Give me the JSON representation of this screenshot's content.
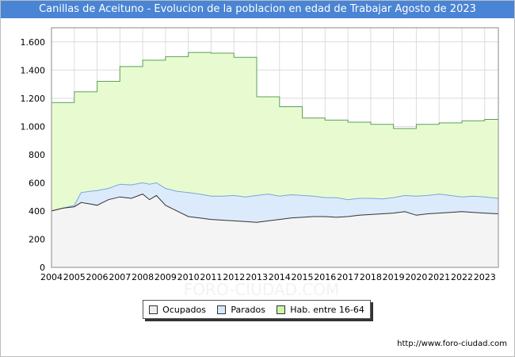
{
  "title": "Canillas de Aceituno - Evolucion de la poblacion en edad de Trabajar Agosto de 2023",
  "source": "http://www.foro-ciudad.com",
  "watermark": "FORO-CIUDAD.COM",
  "colors": {
    "title_bg": "#4a84d4",
    "hab_fill": "#e8fbd0",
    "hab_line": "#5aa05a",
    "parados_fill": "#dcebfb",
    "parados_line": "#7aa6d8",
    "ocupados_fill": "#f4f4f4",
    "ocupados_line": "#333333",
    "swatch_ocupados": "#eeeeee",
    "swatch_parados": "#d8e8fb",
    "swatch_hab": "#ccf5a8"
  },
  "chart_data": {
    "type": "area",
    "title": "Canillas de Aceituno - Evolucion de la poblacion en edad de Trabajar Agosto de 2023",
    "xlabel": "",
    "ylabel": "",
    "xlim": [
      2004,
      2023.6
    ],
    "ylim": [
      0,
      1700
    ],
    "x_ticks": [
      "2004",
      "2005",
      "2006",
      "2007",
      "2008",
      "2009",
      "2010",
      "2011",
      "2012",
      "2013",
      "2014",
      "2015",
      "2016",
      "2017",
      "2018",
      "2019",
      "2020",
      "2021",
      "2022",
      "2023"
    ],
    "y_ticks": [
      {
        "value": 0,
        "label": "0"
      },
      {
        "value": 200,
        "label": "200"
      },
      {
        "value": 400,
        "label": "400"
      },
      {
        "value": 600,
        "label": "600"
      },
      {
        "value": 800,
        "label": "800"
      },
      {
        "value": 1000,
        "label": "1.000"
      },
      {
        "value": 1200,
        "label": "1.200"
      },
      {
        "value": 1400,
        "label": "1.400"
      },
      {
        "value": 1600,
        "label": "1.600"
      }
    ],
    "grid": true,
    "legend_position": "bottom",
    "series": [
      {
        "name": "Hab. entre 16-64",
        "step": true,
        "x": [
          2004,
          2005,
          2006,
          2007,
          2008,
          2009,
          2010,
          2011,
          2012,
          2013,
          2014,
          2015,
          2016,
          2017,
          2018,
          2019,
          2020,
          2021,
          2022,
          2023
        ],
        "values": [
          1170,
          1245,
          1320,
          1425,
          1470,
          1495,
          1525,
          1520,
          1490,
          1210,
          1140,
          1060,
          1045,
          1030,
          1015,
          985,
          1015,
          1025,
          1040,
          1050
        ]
      },
      {
        "name": "Parados",
        "x": [
          2004,
          2004.5,
          2005,
          2005.3,
          2005.7,
          2006,
          2006.5,
          2007,
          2007.5,
          2008,
          2008.3,
          2008.6,
          2009,
          2009.5,
          2010,
          2010.5,
          2011,
          2011.5,
          2012,
          2012.5,
          2013,
          2013.5,
          2014,
          2014.5,
          2015,
          2015.5,
          2016,
          2016.5,
          2017,
          2017.5,
          2018,
          2018.5,
          2019,
          2019.5,
          2020,
          2020.5,
          2021,
          2021.5,
          2022,
          2022.5,
          2023,
          2023.6
        ],
        "values": [
          400,
          420,
          440,
          530,
          540,
          545,
          560,
          590,
          585,
          600,
          590,
          600,
          560,
          540,
          530,
          520,
          505,
          505,
          510,
          500,
          510,
          520,
          505,
          515,
          510,
          505,
          495,
          495,
          480,
          490,
          490,
          485,
          495,
          510,
          505,
          510,
          520,
          510,
          500,
          505,
          500,
          490
        ]
      },
      {
        "name": "Ocupados",
        "x": [
          2004,
          2004.5,
          2005,
          2005.3,
          2005.7,
          2006,
          2006.5,
          2007,
          2007.5,
          2008,
          2008.3,
          2008.6,
          2009,
          2009.5,
          2010,
          2010.5,
          2011,
          2011.5,
          2012,
          2012.5,
          2013,
          2013.5,
          2014,
          2014.5,
          2015,
          2015.5,
          2016,
          2016.5,
          2017,
          2017.5,
          2018,
          2018.5,
          2019,
          2019.5,
          2020,
          2020.5,
          2021,
          2021.5,
          2022,
          2022.5,
          2023,
          2023.6
        ],
        "values": [
          400,
          420,
          430,
          460,
          450,
          440,
          480,
          500,
          490,
          520,
          480,
          510,
          440,
          400,
          360,
          350,
          340,
          335,
          330,
          325,
          320,
          330,
          340,
          350,
          355,
          360,
          360,
          355,
          360,
          370,
          375,
          380,
          385,
          395,
          370,
          380,
          385,
          390,
          395,
          390,
          385,
          380
        ]
      }
    ]
  }
}
